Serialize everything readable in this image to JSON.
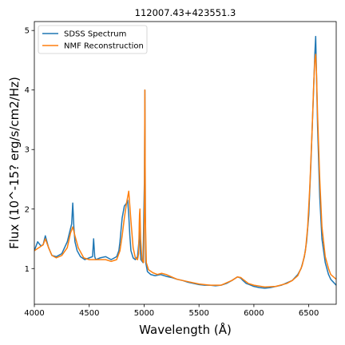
{
  "chart_data": {
    "type": "line",
    "title": "112007.43+423551.3",
    "xlabel": "Wavelength (Å)",
    "ylabel": "Flux (10^-15? erg/s/cm2/Hz)",
    "xlim": [
      4000,
      6750
    ],
    "ylim": [
      0.4,
      5.15
    ],
    "xticks": [
      4000,
      4500,
      5000,
      5500,
      6000,
      6500
    ],
    "yticks": [
      1,
      2,
      3,
      4,
      5
    ],
    "grid": false,
    "legend_position": "upper-left",
    "series": [
      {
        "name": "SDSS Spectrum",
        "color": "#1f77b4",
        "x": [
          4000,
          4030,
          4060,
          4080,
          4100,
          4130,
          4160,
          4200,
          4250,
          4300,
          4320,
          4340,
          4350,
          4360,
          4370,
          4390,
          4420,
          4460,
          4500,
          4530,
          4540,
          4550,
          4560,
          4600,
          4650,
          4700,
          4750,
          4770,
          4780,
          4790,
          4800,
          4820,
          4840,
          4850,
          4860,
          4870,
          4880,
          4900,
          4920,
          4940,
          4955,
          4959,
          4963,
          4970,
          4990,
          5003,
          5007,
          5011,
          5015,
          5030,
          5060,
          5100,
          5150,
          5200,
          5250,
          5300,
          5350,
          5400,
          5450,
          5500,
          5550,
          5600,
          5650,
          5700,
          5750,
          5800,
          5850,
          5880,
          5900,
          5930,
          5960,
          6000,
          6050,
          6100,
          6150,
          6200,
          6250,
          6300,
          6350,
          6400,
          6430,
          6460,
          6480,
          6500,
          6520,
          6540,
          6555,
          6563,
          6570,
          6580,
          6600,
          6620,
          6650,
          6680,
          6700,
          6720,
          6750
        ],
        "y": [
          1.3,
          1.45,
          1.38,
          1.4,
          1.55,
          1.35,
          1.22,
          1.2,
          1.25,
          1.45,
          1.6,
          1.75,
          2.1,
          1.7,
          1.45,
          1.3,
          1.2,
          1.15,
          1.18,
          1.2,
          1.5,
          1.2,
          1.15,
          1.18,
          1.2,
          1.15,
          1.2,
          1.3,
          1.45,
          1.65,
          1.85,
          2.05,
          2.1,
          2.15,
          1.9,
          1.55,
          1.3,
          1.18,
          1.15,
          1.2,
          1.5,
          1.9,
          1.4,
          1.15,
          1.1,
          2.5,
          4.0,
          2.0,
          1.1,
          0.95,
          0.9,
          0.88,
          0.9,
          0.87,
          0.85,
          0.82,
          0.8,
          0.77,
          0.75,
          0.73,
          0.72,
          0.72,
          0.71,
          0.72,
          0.75,
          0.8,
          0.86,
          0.84,
          0.8,
          0.75,
          0.73,
          0.7,
          0.68,
          0.67,
          0.68,
          0.7,
          0.72,
          0.76,
          0.8,
          0.9,
          1.0,
          1.2,
          1.45,
          1.9,
          2.8,
          3.8,
          4.6,
          4.9,
          4.3,
          3.4,
          2.2,
          1.5,
          1.1,
          0.9,
          0.82,
          0.78,
          0.72
        ]
      },
      {
        "name": "NMF Reconstruction",
        "color": "#ff7f0e",
        "x": [
          4000,
          4040,
          4080,
          4100,
          4130,
          4160,
          4200,
          4250,
          4300,
          4330,
          4350,
          4370,
          4400,
          4450,
          4500,
          4550,
          4600,
          4650,
          4700,
          4750,
          4780,
          4800,
          4820,
          4840,
          4860,
          4880,
          4900,
          4920,
          4940,
          4950,
          4958,
          4962,
          4968,
          4980,
          4995,
          5003,
          5007,
          5011,
          5020,
          5040,
          5080,
          5120,
          5160,
          5200,
          5250,
          5300,
          5400,
          5500,
          5600,
          5700,
          5800,
          5850,
          5880,
          5900,
          5950,
          6000,
          6100,
          6200,
          6300,
          6350,
          6400,
          6440,
          6470,
          6490,
          6510,
          6530,
          6545,
          6555,
          6563,
          6570,
          6580,
          6600,
          6620,
          6650,
          6680,
          6700,
          6750
        ],
        "y": [
          1.3,
          1.35,
          1.4,
          1.5,
          1.35,
          1.22,
          1.18,
          1.22,
          1.35,
          1.6,
          1.7,
          1.55,
          1.35,
          1.18,
          1.15,
          1.15,
          1.15,
          1.15,
          1.12,
          1.15,
          1.3,
          1.55,
          1.85,
          2.1,
          2.3,
          1.8,
          1.35,
          1.18,
          1.15,
          1.25,
          1.9,
          2.0,
          1.5,
          1.15,
          1.1,
          2.0,
          4.0,
          1.9,
          1.1,
          0.98,
          0.93,
          0.9,
          0.92,
          0.9,
          0.86,
          0.82,
          0.78,
          0.74,
          0.72,
          0.72,
          0.8,
          0.86,
          0.85,
          0.82,
          0.75,
          0.72,
          0.69,
          0.7,
          0.75,
          0.8,
          0.88,
          1.05,
          1.3,
          1.7,
          2.4,
          3.3,
          4.1,
          4.5,
          4.6,
          4.3,
          3.6,
          2.5,
          1.7,
          1.2,
          1.0,
          0.9,
          0.82
        ]
      }
    ]
  }
}
